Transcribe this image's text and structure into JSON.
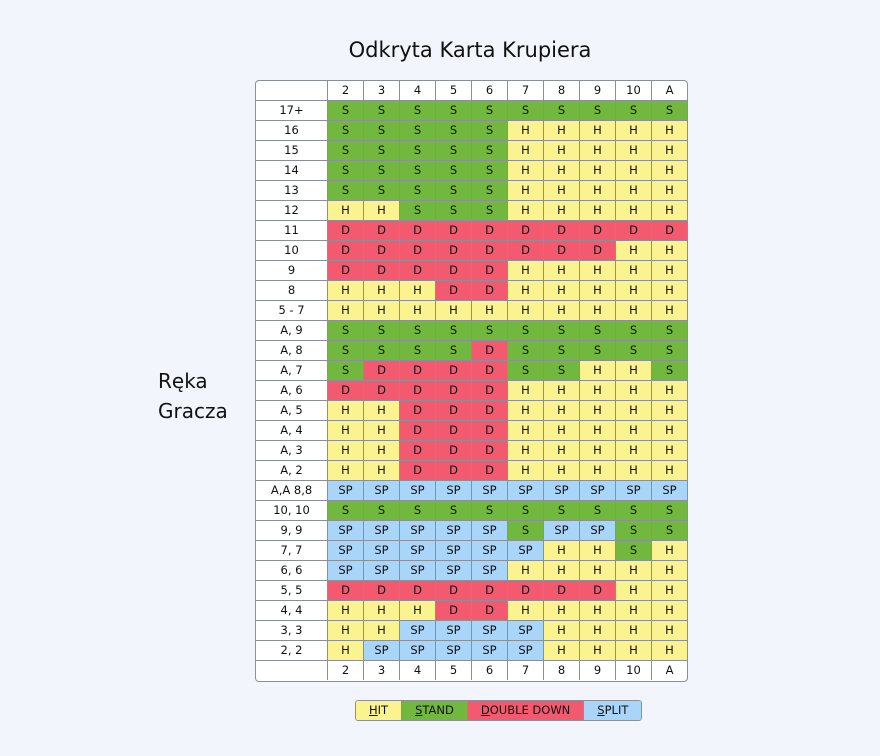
{
  "title": "Odkryta Karta Krupiera",
  "side_label": "Ręka Gracza",
  "table": {
    "header": [
      "2",
      "3",
      "4",
      "5",
      "6",
      "7",
      "8",
      "9",
      "10",
      "A"
    ],
    "rows": [
      {
        "label": "17+",
        "cells": [
          "S",
          "S",
          "S",
          "S",
          "S",
          "S",
          "S",
          "S",
          "S",
          "S"
        ]
      },
      {
        "label": "16",
        "cells": [
          "S",
          "S",
          "S",
          "S",
          "S",
          "H",
          "H",
          "H",
          "H",
          "H"
        ]
      },
      {
        "label": "15",
        "cells": [
          "S",
          "S",
          "S",
          "S",
          "S",
          "H",
          "H",
          "H",
          "H",
          "H"
        ]
      },
      {
        "label": "14",
        "cells": [
          "S",
          "S",
          "S",
          "S",
          "S",
          "H",
          "H",
          "H",
          "H",
          "H"
        ]
      },
      {
        "label": "13",
        "cells": [
          "S",
          "S",
          "S",
          "S",
          "S",
          "H",
          "H",
          "H",
          "H",
          "H"
        ]
      },
      {
        "label": "12",
        "cells": [
          "H",
          "H",
          "S",
          "S",
          "S",
          "H",
          "H",
          "H",
          "H",
          "H"
        ]
      },
      {
        "label": "11",
        "cells": [
          "D",
          "D",
          "D",
          "D",
          "D",
          "D",
          "D",
          "D",
          "D",
          "D"
        ]
      },
      {
        "label": "10",
        "cells": [
          "D",
          "D",
          "D",
          "D",
          "D",
          "D",
          "D",
          "D",
          "H",
          "H"
        ]
      },
      {
        "label": "9",
        "cells": [
          "D",
          "D",
          "D",
          "D",
          "D",
          "H",
          "H",
          "H",
          "H",
          "H"
        ]
      },
      {
        "label": "8",
        "cells": [
          "H",
          "H",
          "H",
          "D",
          "D",
          "H",
          "H",
          "H",
          "H",
          "H"
        ]
      },
      {
        "label": "5 - 7",
        "cells": [
          "H",
          "H",
          "H",
          "H",
          "H",
          "H",
          "H",
          "H",
          "H",
          "H"
        ]
      },
      {
        "label": "A, 9",
        "cells": [
          "S",
          "S",
          "S",
          "S",
          "S",
          "S",
          "S",
          "S",
          "S",
          "S"
        ]
      },
      {
        "label": "A, 8",
        "cells": [
          "S",
          "S",
          "S",
          "S",
          "D",
          "S",
          "S",
          "S",
          "S",
          "S"
        ]
      },
      {
        "label": "A, 7",
        "cells": [
          "S",
          "D",
          "D",
          "D",
          "D",
          "S",
          "S",
          "H",
          "H",
          "S"
        ]
      },
      {
        "label": "A, 6",
        "cells": [
          "D",
          "D",
          "D",
          "D",
          "D",
          "H",
          "H",
          "H",
          "H",
          "H"
        ]
      },
      {
        "label": "A, 5",
        "cells": [
          "H",
          "H",
          "D",
          "D",
          "D",
          "H",
          "H",
          "H",
          "H",
          "H"
        ]
      },
      {
        "label": "A, 4",
        "cells": [
          "H",
          "H",
          "D",
          "D",
          "D",
          "H",
          "H",
          "H",
          "H",
          "H"
        ]
      },
      {
        "label": "A, 3",
        "cells": [
          "H",
          "H",
          "D",
          "D",
          "D",
          "H",
          "H",
          "H",
          "H",
          "H"
        ]
      },
      {
        "label": "A, 2",
        "cells": [
          "H",
          "H",
          "D",
          "D",
          "D",
          "H",
          "H",
          "H",
          "H",
          "H"
        ]
      },
      {
        "label": "A,A 8,8",
        "cells": [
          "SP",
          "SP",
          "SP",
          "SP",
          "SP",
          "SP",
          "SP",
          "SP",
          "SP",
          "SP"
        ]
      },
      {
        "label": "10, 10",
        "cells": [
          "S",
          "S",
          "S",
          "S",
          "S",
          "S",
          "S",
          "S",
          "S",
          "S"
        ]
      },
      {
        "label": "9, 9",
        "cells": [
          "SP",
          "SP",
          "SP",
          "SP",
          "SP",
          "S",
          "SP",
          "SP",
          "S",
          "S"
        ]
      },
      {
        "label": "7, 7",
        "cells": [
          "SP",
          "SP",
          "SP",
          "SP",
          "SP",
          "SP",
          "H",
          "H",
          "S",
          "H"
        ]
      },
      {
        "label": "6, 6",
        "cells": [
          "SP",
          "SP",
          "SP",
          "SP",
          "SP",
          "H",
          "H",
          "H",
          "H",
          "H"
        ]
      },
      {
        "label": "5, 5",
        "cells": [
          "D",
          "D",
          "D",
          "D",
          "D",
          "D",
          "D",
          "D",
          "H",
          "H"
        ]
      },
      {
        "label": "4, 4",
        "cells": [
          "H",
          "H",
          "H",
          "D",
          "D",
          "H",
          "H",
          "H",
          "H",
          "H"
        ]
      },
      {
        "label": "3, 3",
        "cells": [
          "H",
          "H",
          "SP",
          "SP",
          "SP",
          "SP",
          "H",
          "H",
          "H",
          "H"
        ]
      },
      {
        "label": "2, 2",
        "cells": [
          "H",
          "SP",
          "SP",
          "SP",
          "SP",
          "SP",
          "H",
          "H",
          "H",
          "H"
        ]
      }
    ],
    "footer": [
      "2",
      "3",
      "4",
      "5",
      "6",
      "7",
      "8",
      "9",
      "10",
      "A"
    ]
  },
  "legend": [
    {
      "label": "HIT",
      "symbol": "H",
      "color": "#fbf38f"
    },
    {
      "label": "STAND",
      "symbol": "S",
      "color": "#72b83f"
    },
    {
      "label": "DOUBLE DOWN",
      "symbol": "D",
      "color": "#f35a6f"
    },
    {
      "label": "SPLIT",
      "symbol": "SP",
      "color": "#a9d5f9"
    }
  ]
}
